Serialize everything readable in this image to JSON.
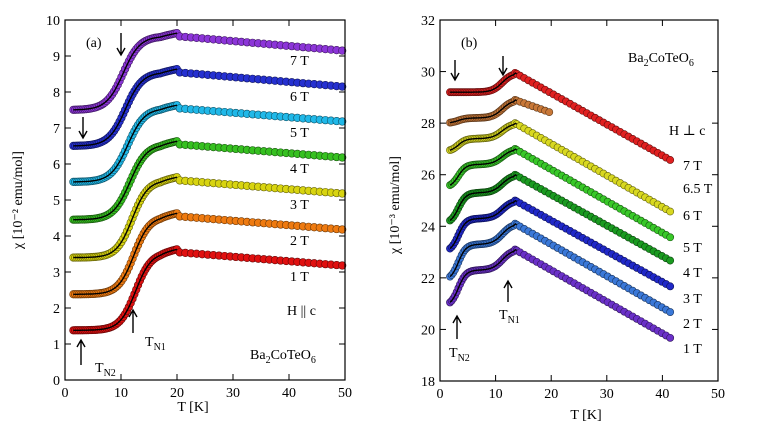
{
  "chart_data": [
    {
      "type": "scatter",
      "panel_label": "(a)",
      "compound": "Ba2CoTeO6",
      "field_label": "H || c",
      "xlabel": "T [K]",
      "ylabel": "χ [10⁻² emu/mol]",
      "xlim": [
        0,
        50
      ],
      "ylim": [
        0,
        10
      ],
      "xticks": [
        0,
        10,
        20,
        30,
        40,
        50
      ],
      "yticks": [
        0,
        1,
        2,
        3,
        4,
        5,
        6,
        7,
        8,
        9,
        10
      ],
      "annotations": [
        "TN2",
        "TN1"
      ],
      "series": [
        {
          "name": "1 T",
          "color": "#e01010",
          "low": 1.38,
          "high": 3.55,
          "end": 3.18,
          "tc": 12.6,
          "w": 1.4
        },
        {
          "name": "2 T",
          "color": "#ee7a10",
          "low": 2.38,
          "high": 4.55,
          "end": 4.18,
          "tc": 12.3,
          "w": 1.4
        },
        {
          "name": "3 T",
          "color": "#d8d410",
          "low": 3.4,
          "high": 5.55,
          "end": 5.18,
          "tc": 12.0,
          "w": 1.4
        },
        {
          "name": "4 T",
          "color": "#36c020",
          "low": 4.45,
          "high": 6.55,
          "end": 6.18,
          "tc": 11.6,
          "w": 1.5
        },
        {
          "name": "5 T",
          "color": "#20b8e8",
          "low": 5.5,
          "high": 7.55,
          "end": 7.18,
          "tc": 11.2,
          "w": 1.5
        },
        {
          "name": "6 T",
          "color": "#2530d0",
          "low": 6.5,
          "high": 8.55,
          "end": 8.15,
          "tc": 10.8,
          "w": 1.5
        },
        {
          "name": "7 T",
          "color": "#8c35d8",
          "low": 7.5,
          "high": 9.55,
          "end": 9.15,
          "tc": 10.4,
          "w": 1.5
        }
      ]
    },
    {
      "type": "scatter",
      "panel_label": "(b)",
      "compound": "Ba2CoTeO6",
      "field_label": "H ⊥ c",
      "xlabel": "T [K]",
      "ylabel": "χ [10⁻³ emu/mol]",
      "xlim": [
        0,
        50
      ],
      "ylim": [
        18,
        32
      ],
      "xticks": [
        0,
        10,
        20,
        30,
        40,
        50
      ],
      "yticks": [
        18,
        20,
        22,
        24,
        26,
        28,
        30,
        32
      ],
      "annotations": [
        "TN2",
        "TN1"
      ],
      "series": [
        {
          "name": "1 T",
          "color": "#6a30c8",
          "low": 20.9,
          "plateau": 22.3,
          "peak": 23.1,
          "end": 19.6,
          "tmax": 42
        },
        {
          "name": "2 T",
          "color": "#3a78d8",
          "low": 21.9,
          "plateau": 23.3,
          "peak": 24.1,
          "end": 20.6,
          "tmax": 42
        },
        {
          "name": "3 T",
          "color": "#2028c8",
          "low": 23.0,
          "plateau": 24.3,
          "peak": 25.0,
          "end": 21.6,
          "tmax": 42
        },
        {
          "name": "4 T",
          "color": "#1a9a20",
          "low": 24.1,
          "plateau": 25.3,
          "peak": 26.0,
          "end": 22.6,
          "tmax": 42
        },
        {
          "name": "5 T",
          "color": "#38c828",
          "low": 25.5,
          "plateau": 26.4,
          "peak": 27.0,
          "end": 23.5,
          "tmax": 42
        },
        {
          "name": "6 T",
          "color": "#d8d820",
          "low": 26.9,
          "plateau": 27.4,
          "peak": 28.0,
          "end": 24.5,
          "tmax": 42
        },
        {
          "name": "6.5 T",
          "color": "#c87838",
          "low": 28.0,
          "plateau": 28.2,
          "peak": 28.9,
          "end": 28.4,
          "tmax": 20
        },
        {
          "name": "7 T",
          "color": "#e02020",
          "low": 29.2,
          "plateau": 29.2,
          "peak": 29.95,
          "end": 26.5,
          "tmax": 42
        }
      ]
    }
  ]
}
